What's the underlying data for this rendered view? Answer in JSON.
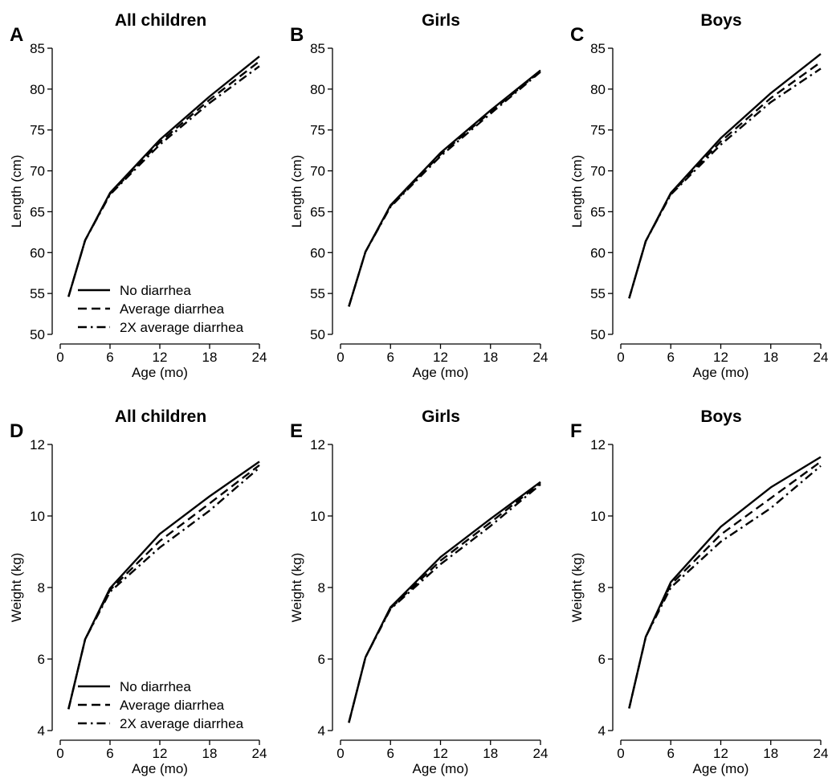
{
  "figure": {
    "legend_entries": [
      "No diarrhea",
      "Average diarrhea",
      "2X average diarrhea"
    ],
    "line_color": "#000000",
    "series_styles": [
      "solid",
      "dashed",
      "dashdot"
    ]
  },
  "chart_data": [
    {
      "panel": "A",
      "title": "All children",
      "type": "line",
      "xlabel": "Age (mo)",
      "ylabel": "Length (cm)",
      "xlim": [
        0,
        24
      ],
      "ylim": [
        50,
        85
      ],
      "xticks": [
        0,
        6,
        12,
        18,
        24
      ],
      "yticks": [
        50,
        55,
        60,
        65,
        70,
        75,
        80,
        85
      ],
      "x": [
        1,
        3,
        6,
        12,
        18,
        24
      ],
      "series": [
        {
          "name": "No diarrhea",
          "values": [
            54.6,
            61.5,
            67.3,
            73.8,
            79.1,
            84.0
          ]
        },
        {
          "name": "Average diarrhea",
          "values": [
            54.6,
            61.5,
            67.2,
            73.5,
            78.7,
            83.4
          ]
        },
        {
          "name": "2X average diarrhea",
          "values": [
            54.6,
            61.5,
            67.1,
            73.2,
            78.3,
            82.8
          ]
        }
      ],
      "legend": true,
      "legend_position": "bottom-left",
      "grid": false
    },
    {
      "panel": "B",
      "title": "Girls",
      "type": "line",
      "xlabel": "Age (mo)",
      "ylabel": "Length (cm)",
      "xlim": [
        0,
        24
      ],
      "ylim": [
        50,
        85
      ],
      "xticks": [
        0,
        6,
        12,
        18,
        24
      ],
      "yticks": [
        50,
        55,
        60,
        65,
        70,
        75,
        80,
        85
      ],
      "x": [
        1,
        3,
        6,
        12,
        18,
        24
      ],
      "series": [
        {
          "name": "No diarrhea",
          "values": [
            53.4,
            60.1,
            65.8,
            72.2,
            77.4,
            82.3
          ]
        },
        {
          "name": "Average diarrhea",
          "values": [
            53.4,
            60.1,
            65.7,
            72.0,
            77.2,
            82.2
          ]
        },
        {
          "name": "2X average diarrhea",
          "values": [
            53.4,
            60.1,
            65.6,
            71.8,
            77.0,
            82.1
          ]
        }
      ],
      "legend": false,
      "grid": false
    },
    {
      "panel": "C",
      "title": "Boys",
      "type": "line",
      "xlabel": "Age (mo)",
      "ylabel": "Length (cm)",
      "xlim": [
        0,
        24
      ],
      "ylim": [
        50,
        85
      ],
      "xticks": [
        0,
        6,
        12,
        18,
        24
      ],
      "yticks": [
        50,
        55,
        60,
        65,
        70,
        75,
        80,
        85
      ],
      "x": [
        1,
        3,
        6,
        12,
        18,
        24
      ],
      "series": [
        {
          "name": "No diarrhea",
          "values": [
            54.4,
            61.4,
            67.3,
            74.0,
            79.5,
            84.3
          ]
        },
        {
          "name": "Average diarrhea",
          "values": [
            54.4,
            61.4,
            67.2,
            73.6,
            78.9,
            83.3
          ]
        },
        {
          "name": "2X average diarrhea",
          "values": [
            54.4,
            61.4,
            67.1,
            73.2,
            78.4,
            82.5
          ]
        }
      ],
      "legend": false,
      "grid": false
    },
    {
      "panel": "D",
      "title": "All children",
      "type": "line",
      "xlabel": "Age (mo)",
      "ylabel": "Weight (kg)",
      "xlim": [
        0,
        24
      ],
      "ylim": [
        4,
        12
      ],
      "xticks": [
        0,
        6,
        12,
        18,
        24
      ],
      "yticks": [
        4,
        6,
        8,
        10,
        12
      ],
      "x": [
        1,
        3,
        6,
        12,
        18,
        24
      ],
      "series": [
        {
          "name": "No diarrhea",
          "values": [
            4.6,
            6.55,
            7.98,
            9.5,
            10.55,
            11.52
          ]
        },
        {
          "name": "Average diarrhea",
          "values": [
            4.6,
            6.55,
            7.93,
            9.3,
            10.35,
            11.42
          ]
        },
        {
          "name": "2X average diarrhea",
          "values": [
            4.6,
            6.55,
            7.88,
            9.12,
            10.15,
            11.35
          ]
        }
      ],
      "legend": true,
      "legend_position": "bottom-left",
      "grid": false
    },
    {
      "panel": "E",
      "title": "Girls",
      "type": "line",
      "xlabel": "Age (mo)",
      "ylabel": "Weight (kg)",
      "xlim": [
        0,
        24
      ],
      "ylim": [
        4,
        12
      ],
      "xticks": [
        0,
        6,
        12,
        18,
        24
      ],
      "yticks": [
        4,
        6,
        8,
        10,
        12
      ],
      "x": [
        1,
        3,
        6,
        12,
        18,
        24
      ],
      "series": [
        {
          "name": "No diarrhea",
          "values": [
            4.22,
            6.05,
            7.45,
            8.85,
            9.92,
            10.95
          ]
        },
        {
          "name": "Average diarrhea",
          "values": [
            4.22,
            6.05,
            7.42,
            8.75,
            9.82,
            10.92
          ]
        },
        {
          "name": "2X average diarrhea",
          "values": [
            4.22,
            6.05,
            7.4,
            8.65,
            9.72,
            10.88
          ]
        }
      ],
      "legend": false,
      "grid": false
    },
    {
      "panel": "F",
      "title": "Boys",
      "type": "line",
      "xlabel": "Age (mo)",
      "ylabel": "Weight (kg)",
      "xlim": [
        0,
        24
      ],
      "ylim": [
        4,
        12
      ],
      "xticks": [
        0,
        6,
        12,
        18,
        24
      ],
      "yticks": [
        4,
        6,
        8,
        10,
        12
      ],
      "x": [
        1,
        3,
        6,
        12,
        18,
        24
      ],
      "series": [
        {
          "name": "No diarrhea",
          "values": [
            4.62,
            6.62,
            8.15,
            9.7,
            10.8,
            11.65
          ]
        },
        {
          "name": "Average diarrhea",
          "values": [
            4.62,
            6.62,
            8.08,
            9.48,
            10.5,
            11.52
          ]
        },
        {
          "name": "2X average diarrhea",
          "values": [
            4.62,
            6.62,
            8.0,
            9.28,
            10.22,
            11.4
          ]
        }
      ],
      "legend": false,
      "grid": false
    }
  ]
}
